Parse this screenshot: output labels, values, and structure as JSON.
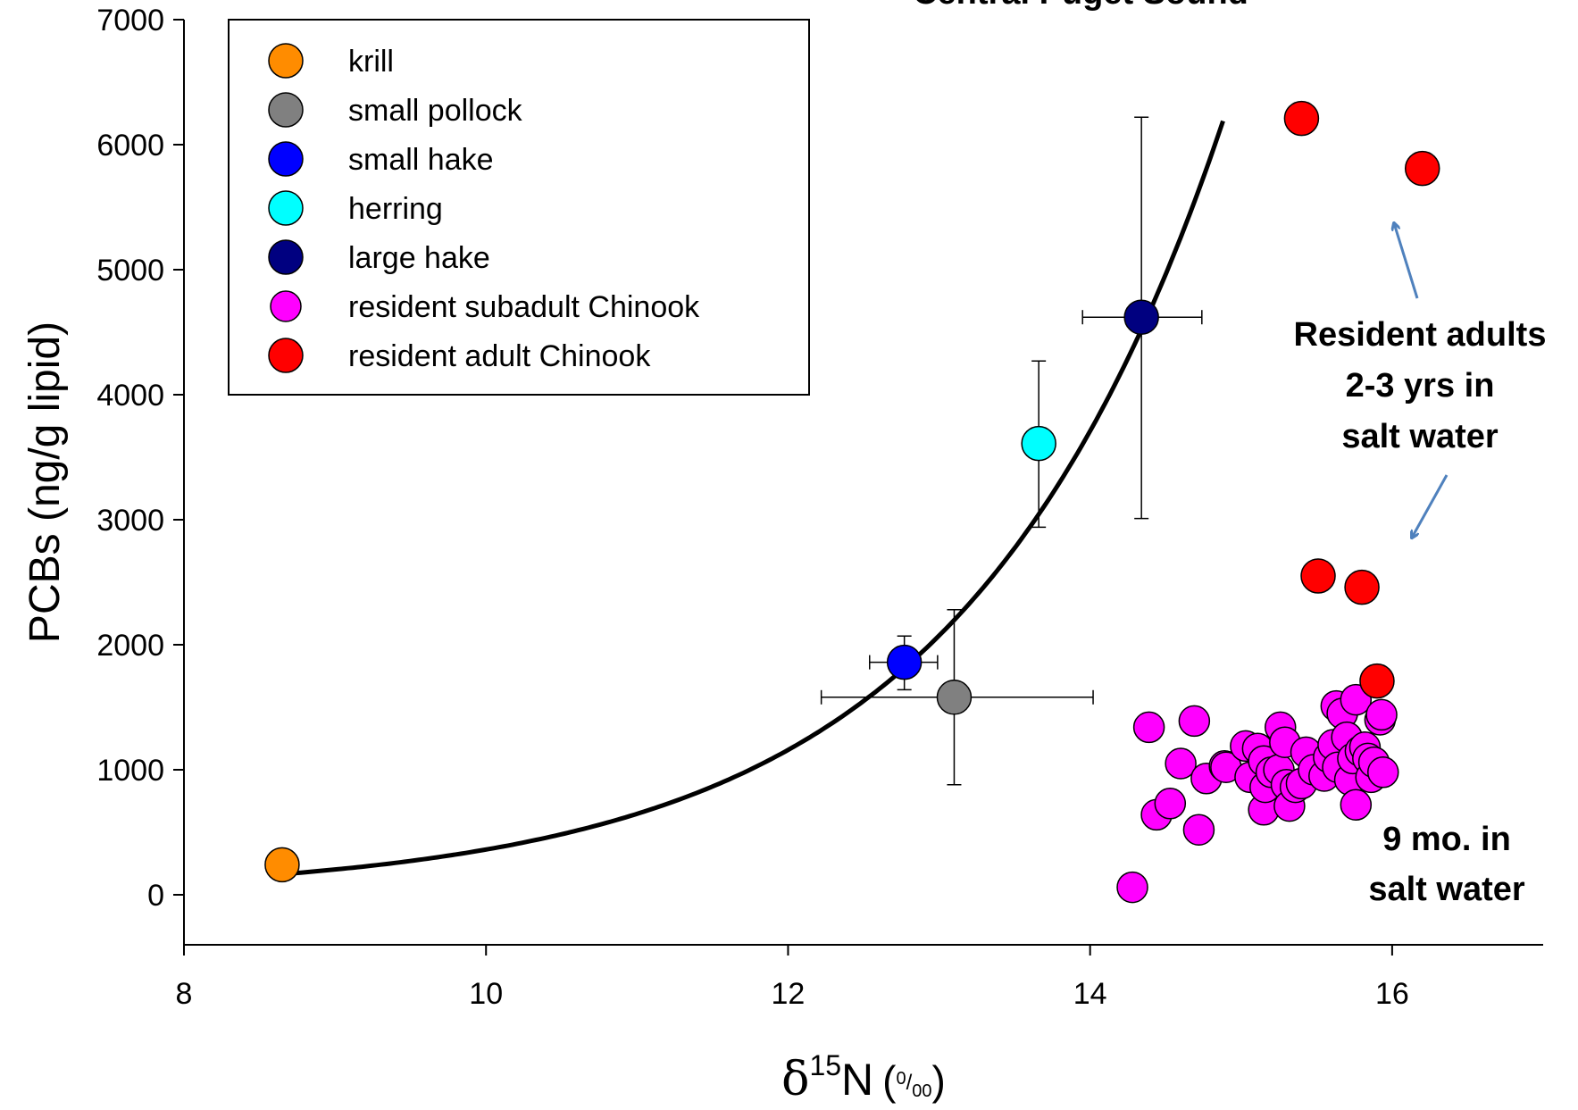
{
  "chart_data": {
    "type": "scatter",
    "title": "Central Puget Sound",
    "xlabel": {
      "symbol": "δ",
      "sup": "15",
      "main": "N",
      "unit_open": "(",
      "unit_num": "0",
      "unit_slash": "/",
      "unit_den": "00",
      "unit_close": ")"
    },
    "ylabel": "PCBs (ng/g lipid)",
    "xlim": [
      8,
      17
    ],
    "ylim": [
      -400,
      7000
    ],
    "xticks": [
      "8",
      "10",
      "12",
      "14",
      "16"
    ],
    "yticks": [
      "0",
      "1000",
      "2000",
      "3000",
      "4000",
      "5000",
      "6000",
      "7000"
    ],
    "grid": false,
    "legend_position": "top-left",
    "series": [
      {
        "name": "krill",
        "color": "#FF8C00",
        "points": [
          {
            "x": 8.65,
            "y": 240
          }
        ]
      },
      {
        "name": "small pollock",
        "color": "#808080",
        "points": [
          {
            "x": 13.1,
            "y": 1580,
            "xerr": [
              12.22,
              14.02
            ],
            "yerr": [
              880,
              2280
            ]
          }
        ]
      },
      {
        "name": "small hake",
        "color": "#0000FF",
        "points": [
          {
            "x": 12.77,
            "y": 1860,
            "xerr": [
              12.54,
              12.99
            ],
            "yerr": [
              1640,
              2070
            ]
          }
        ]
      },
      {
        "name": "herring",
        "color": "#00FFFF",
        "points": [
          {
            "x": 13.66,
            "y": 3610,
            "yerr": [
              2940,
              4270
            ]
          }
        ]
      },
      {
        "name": "large hake",
        "color": "#000080",
        "points": [
          {
            "x": 14.34,
            "y": 4620,
            "xerr": [
              13.95,
              14.74
            ],
            "yerr": [
              3010,
              6220
            ]
          }
        ]
      },
      {
        "name": "resident subadult Chinook",
        "color": "#FF00FF",
        "points": [
          {
            "x": 14.28,
            "y": 60
          },
          {
            "x": 14.39,
            "y": 1340
          },
          {
            "x": 14.44,
            "y": 640
          },
          {
            "x": 14.53,
            "y": 730
          },
          {
            "x": 14.6,
            "y": 1050
          },
          {
            "x": 14.69,
            "y": 1390
          },
          {
            "x": 14.72,
            "y": 520
          },
          {
            "x": 14.77,
            "y": 930
          },
          {
            "x": 14.89,
            "y": 1030
          },
          {
            "x": 14.9,
            "y": 1020
          },
          {
            "x": 15.03,
            "y": 1190
          },
          {
            "x": 15.06,
            "y": 940
          },
          {
            "x": 15.11,
            "y": 1170
          },
          {
            "x": 15.15,
            "y": 1070
          },
          {
            "x": 15.15,
            "y": 680
          },
          {
            "x": 15.16,
            "y": 860
          },
          {
            "x": 15.2,
            "y": 980
          },
          {
            "x": 15.25,
            "y": 1000
          },
          {
            "x": 15.26,
            "y": 1340
          },
          {
            "x": 15.29,
            "y": 1220
          },
          {
            "x": 15.3,
            "y": 880
          },
          {
            "x": 15.32,
            "y": 710
          },
          {
            "x": 15.36,
            "y": 860
          },
          {
            "x": 15.4,
            "y": 890
          },
          {
            "x": 15.43,
            "y": 1140
          },
          {
            "x": 15.48,
            "y": 1000
          },
          {
            "x": 15.55,
            "y": 950
          },
          {
            "x": 15.58,
            "y": 1100
          },
          {
            "x": 15.61,
            "y": 1200
          },
          {
            "x": 15.63,
            "y": 1510
          },
          {
            "x": 15.64,
            "y": 1020
          },
          {
            "x": 15.67,
            "y": 1450
          },
          {
            "x": 15.7,
            "y": 1260
          },
          {
            "x": 15.72,
            "y": 920
          },
          {
            "x": 15.74,
            "y": 1090
          },
          {
            "x": 15.76,
            "y": 720
          },
          {
            "x": 15.76,
            "y": 1560
          },
          {
            "x": 15.79,
            "y": 1150
          },
          {
            "x": 15.82,
            "y": 1180
          },
          {
            "x": 15.84,
            "y": 1090
          },
          {
            "x": 15.86,
            "y": 940
          },
          {
            "x": 15.88,
            "y": 1060
          },
          {
            "x": 15.92,
            "y": 1400
          },
          {
            "x": 15.93,
            "y": 1440
          },
          {
            "x": 15.94,
            "y": 980
          }
        ]
      },
      {
        "name": "resident adult Chinook",
        "color": "#FF0000",
        "points": [
          {
            "x": 15.4,
            "y": 6210
          },
          {
            "x": 16.2,
            "y": 5810
          },
          {
            "x": 15.51,
            "y": 2550
          },
          {
            "x": 15.8,
            "y": 2460
          },
          {
            "x": 15.9,
            "y": 1710
          }
        ]
      }
    ],
    "fit_curve": {
      "type": "exponential",
      "x_range": [
        8.65,
        14.88
      ],
      "a": 165.0,
      "b": 0.5818
    },
    "annotations": {
      "adults": [
        "Resident adults",
        "2-3 yrs in",
        "salt water"
      ],
      "subadults": [
        "9 mo. in",
        "salt water"
      ]
    },
    "annotation_arrow_color": "#4F81BD"
  }
}
